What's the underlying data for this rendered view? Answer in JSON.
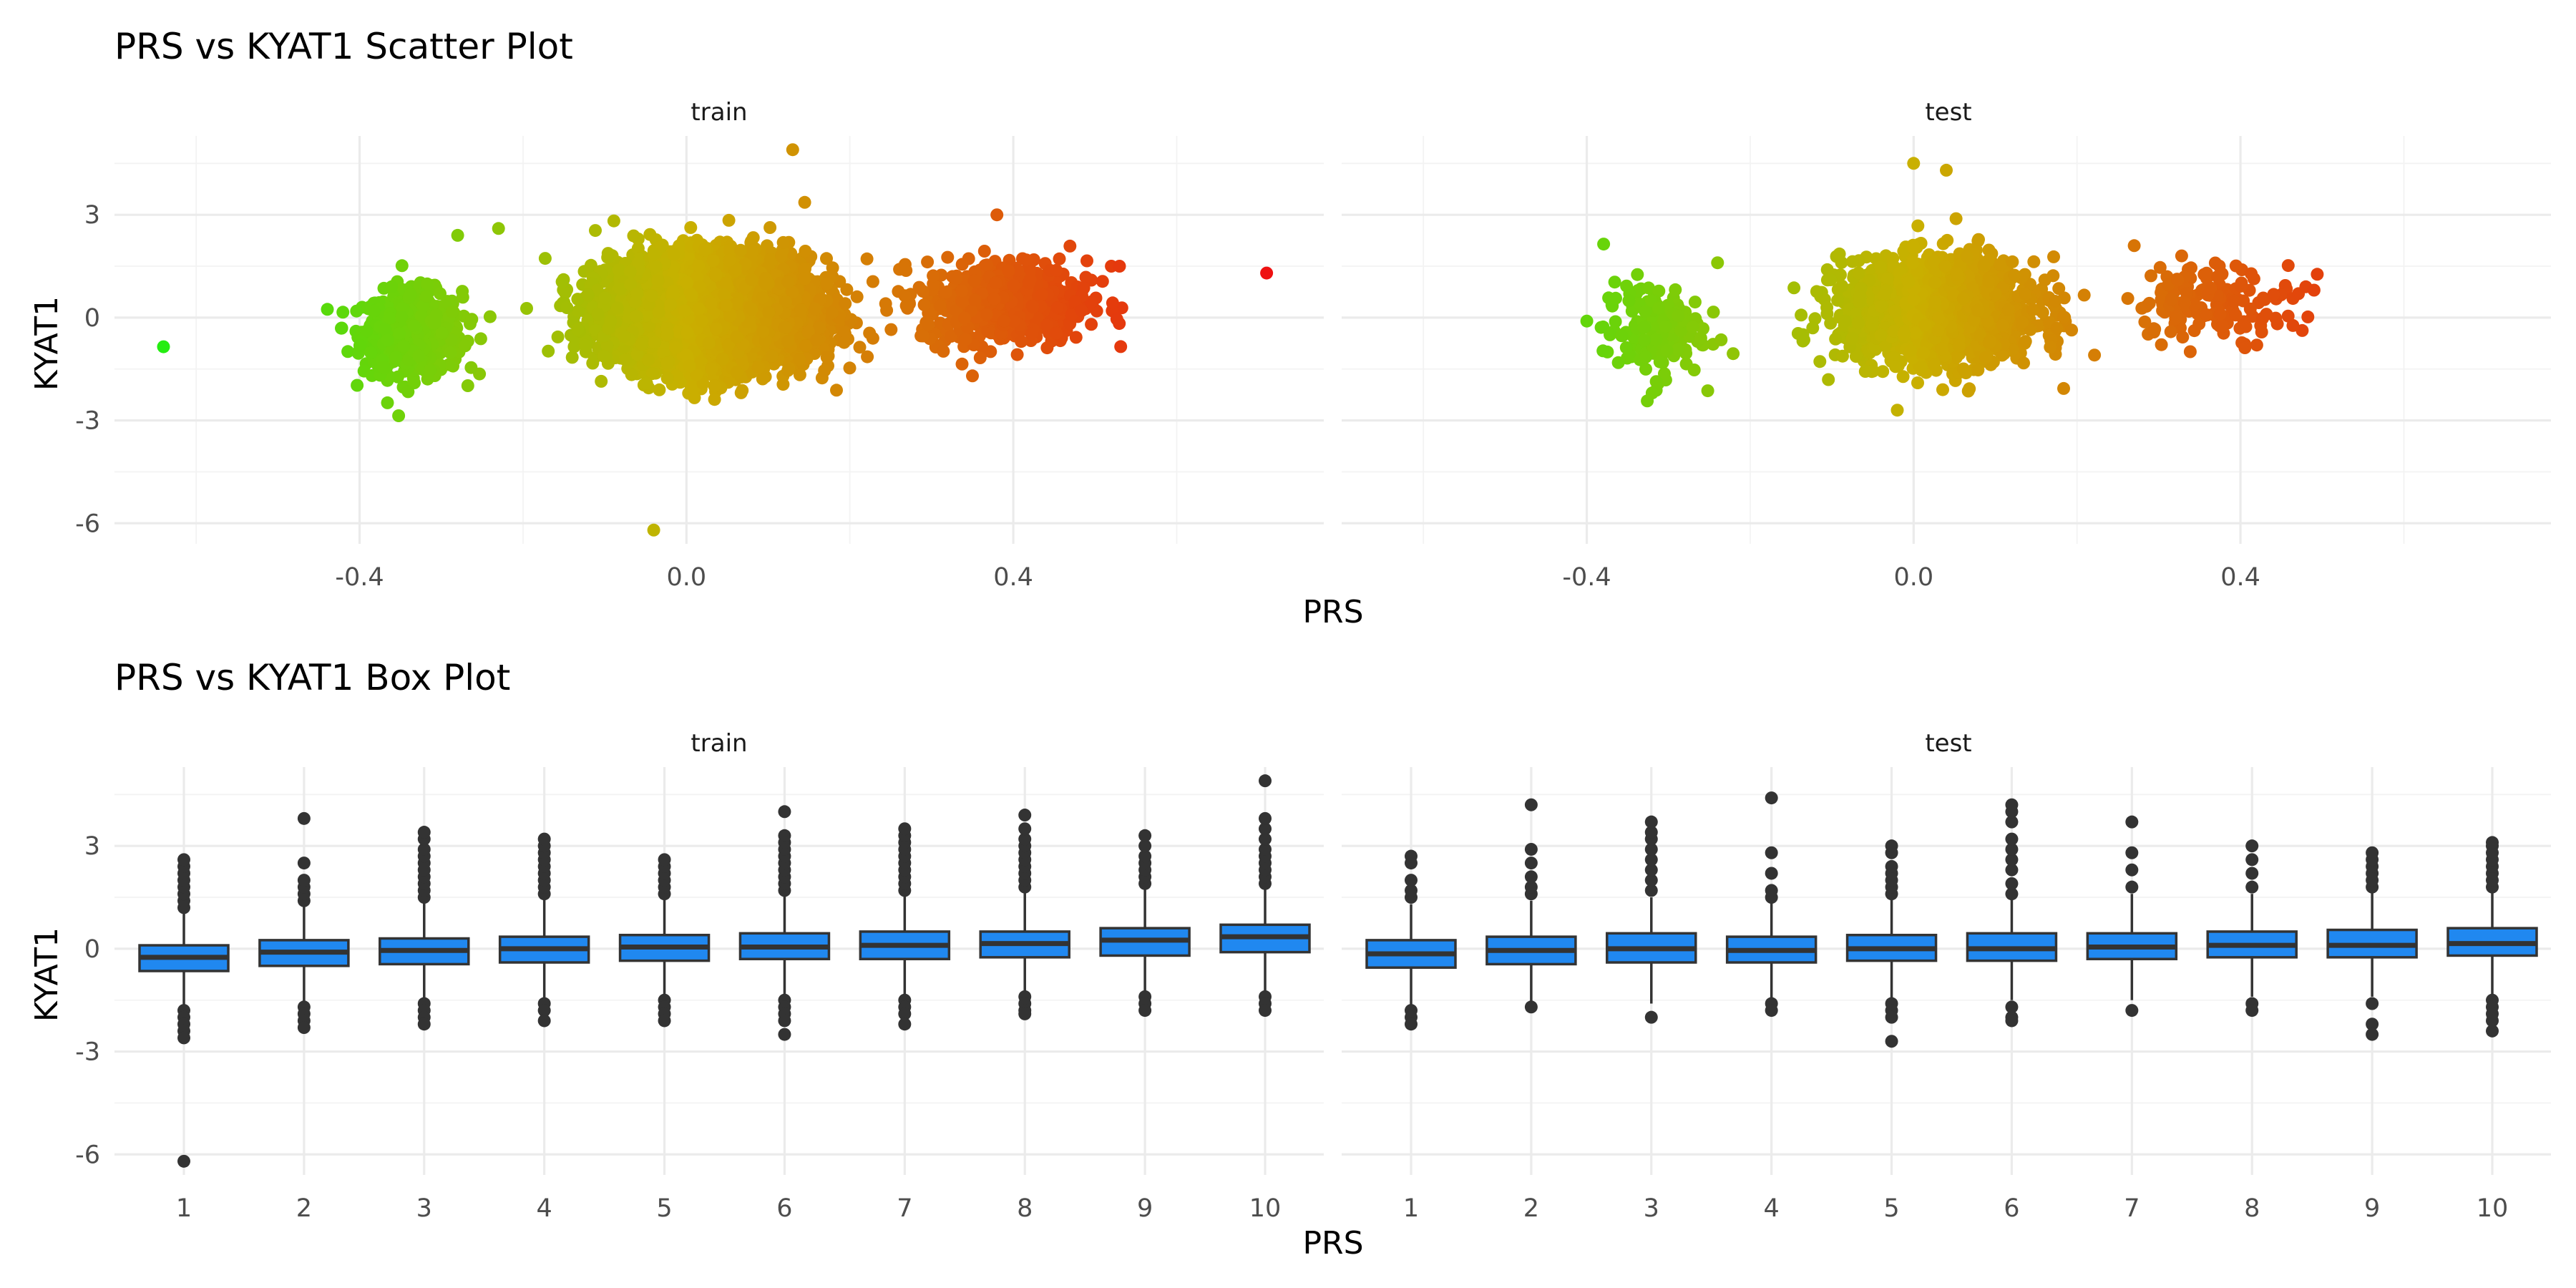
{
  "chart_data": [
    {
      "type": "scatter",
      "title": "PRS vs KYAT1 Scatter Plot",
      "xlabel": "PRS",
      "ylabel": "KYAT1",
      "x_ticks": [
        -0.4,
        0.0,
        0.4
      ],
      "x_tick_labels": [
        "-0.4",
        "0.0",
        "0.4"
      ],
      "y_ticks": [
        3,
        0,
        -3,
        -6
      ],
      "y_tick_labels": [
        "3",
        "0",
        "-3",
        "-6"
      ],
      "xlim": [
        -0.7,
        0.78
      ],
      "ylim": [
        -6.6,
        5.3
      ],
      "grid": true,
      "color_scale": {
        "low": "#22ee11",
        "mid": "#c9b000",
        "high": "#ee1111",
        "domain": [
          -0.65,
          0.0,
          0.71
        ]
      },
      "panels": [
        {
          "facet": "train",
          "clusters": [
            {
              "x_mean": -0.335,
              "x_sd": 0.03,
              "y_mean": -0.45,
              "y_sd": 0.6,
              "n": 700
            },
            {
              "x_mean": 0.03,
              "x_sd": 0.06,
              "y_mean": 0.15,
              "y_sd": 0.75,
              "n": 6000
            },
            {
              "x_mean": 0.39,
              "x_sd": 0.05,
              "y_mean": 0.45,
              "y_sd": 0.6,
              "n": 600
            }
          ],
          "points": [
            {
              "x": -0.64,
              "y": -0.85
            },
            {
              "x": 0.71,
              "y": 1.3
            },
            {
              "x": -0.04,
              "y": -6.2
            },
            {
              "x": 0.13,
              "y": 4.9
            },
            {
              "x": -0.28,
              "y": 2.4
            },
            {
              "x": -0.23,
              "y": 2.6
            },
            {
              "x": 0.38,
              "y": 3.0
            },
            {
              "x": 0.52,
              "y": 1.5
            },
            {
              "x": 0.53,
              "y": 1.5
            },
            {
              "x": 0.35,
              "y": -1.7
            }
          ]
        },
        {
          "facet": "test",
          "clusters": [
            {
              "x_mean": -0.32,
              "x_sd": 0.03,
              "y_mean": -0.35,
              "y_sd": 0.7,
              "n": 150
            },
            {
              "x_mean": 0.03,
              "x_sd": 0.06,
              "y_mean": 0.2,
              "y_sd": 0.75,
              "n": 1500
            },
            {
              "x_mean": 0.37,
              "x_sd": 0.05,
              "y_mean": 0.5,
              "y_sd": 0.55,
              "n": 150
            }
          ],
          "points": [
            {
              "x": -0.4,
              "y": -0.1
            },
            {
              "x": -0.32,
              "y": -2.2
            },
            {
              "x": -0.24,
              "y": 1.6
            },
            {
              "x": 0.0,
              "y": 4.5
            },
            {
              "x": 0.04,
              "y": 4.3
            },
            {
              "x": -0.02,
              "y": -2.7
            },
            {
              "x": 0.48,
              "y": 0.9
            },
            {
              "x": 0.49,
              "y": 0.8
            },
            {
              "x": 0.42,
              "y": -0.8
            },
            {
              "x": 0.27,
              "y": 2.1
            }
          ]
        }
      ]
    },
    {
      "type": "box",
      "title": "PRS vs KYAT1 Box Plot",
      "xlabel": "PRS",
      "ylabel": "KYAT1",
      "categories": [
        "1",
        "2",
        "3",
        "4",
        "5",
        "6",
        "7",
        "8",
        "9",
        "10"
      ],
      "y_ticks": [
        3,
        0,
        -3,
        -6
      ],
      "y_tick_labels": [
        "3",
        "0",
        "-3",
        "-6"
      ],
      "ylim": [
        -6.6,
        5.3
      ],
      "grid": true,
      "box_fill": "#2088f0",
      "box_stroke": "#333333",
      "panels": [
        {
          "facet": "train",
          "boxes": [
            {
              "q1": -0.65,
              "median": -0.25,
              "q3": 0.1,
              "whisker_low": -1.7,
              "whisker_high": 1.1,
              "outliers_high": [
                1.2,
                1.4,
                1.6,
                1.8,
                2.0,
                2.2,
                2.4,
                2.6
              ],
              "outliers_low": [
                -1.8,
                -2.0,
                -2.2,
                -2.4,
                -2.6,
                -6.2
              ]
            },
            {
              "q1": -0.5,
              "median": -0.1,
              "q3": 0.25,
              "whisker_low": -1.6,
              "whisker_high": 1.3,
              "outliers_high": [
                1.4,
                1.6,
                1.8,
                2.0,
                2.5,
                3.8
              ],
              "outliers_low": [
                -1.7,
                -1.9,
                -2.1,
                -2.3
              ]
            },
            {
              "q1": -0.45,
              "median": -0.05,
              "q3": 0.3,
              "whisker_low": -1.5,
              "whisker_high": 1.4,
              "outliers_high": [
                1.5,
                1.7,
                1.9,
                2.1,
                2.3,
                2.5,
                2.7,
                2.9,
                3.2,
                3.4
              ],
              "outliers_low": [
                -1.6,
                -1.8,
                -2.0,
                -2.2
              ]
            },
            {
              "q1": -0.4,
              "median": 0.0,
              "q3": 0.35,
              "whisker_low": -1.5,
              "whisker_high": 1.5,
              "outliers_high": [
                1.6,
                1.8,
                2.0,
                2.2,
                2.4,
                2.6,
                2.8,
                3.0,
                3.2
              ],
              "outliers_low": [
                -1.6,
                -1.8,
                -2.1
              ]
            },
            {
              "q1": -0.35,
              "median": 0.05,
              "q3": 0.4,
              "whisker_low": -1.4,
              "whisker_high": 1.5,
              "outliers_high": [
                1.6,
                1.8,
                2.0,
                2.2,
                2.4,
                2.6
              ],
              "outliers_low": [
                -1.5,
                -1.7,
                -1.9,
                -2.1
              ]
            },
            {
              "q1": -0.3,
              "median": 0.05,
              "q3": 0.45,
              "whisker_low": -1.4,
              "whisker_high": 1.6,
              "outliers_high": [
                1.7,
                1.9,
                2.1,
                2.3,
                2.5,
                2.7,
                2.9,
                3.1,
                3.3,
                4.0
              ],
              "outliers_low": [
                -1.5,
                -1.7,
                -1.9,
                -2.1,
                -2.5
              ]
            },
            {
              "q1": -0.3,
              "median": 0.1,
              "q3": 0.5,
              "whisker_low": -1.4,
              "whisker_high": 1.6,
              "outliers_high": [
                1.7,
                1.9,
                2.1,
                2.3,
                2.5,
                2.7,
                2.9,
                3.1,
                3.3,
                3.5
              ],
              "outliers_low": [
                -1.5,
                -1.7,
                -1.9,
                -2.2
              ]
            },
            {
              "q1": -0.25,
              "median": 0.15,
              "q3": 0.5,
              "whisker_low": -1.3,
              "whisker_high": 1.7,
              "outliers_high": [
                1.8,
                2.0,
                2.2,
                2.4,
                2.6,
                2.8,
                3.0,
                3.2,
                3.5,
                3.9
              ],
              "outliers_low": [
                -1.4,
                -1.6,
                -1.8,
                -1.9
              ]
            },
            {
              "q1": -0.2,
              "median": 0.25,
              "q3": 0.6,
              "whisker_low": -1.3,
              "whisker_high": 1.8,
              "outliers_high": [
                1.9,
                2.1,
                2.3,
                2.5,
                2.7,
                3.0,
                3.3
              ],
              "outliers_low": [
                -1.4,
                -1.6,
                -1.8
              ]
            },
            {
              "q1": -0.1,
              "median": 0.35,
              "q3": 0.7,
              "whisker_low": -1.3,
              "whisker_high": 1.8,
              "outliers_high": [
                1.9,
                2.1,
                2.3,
                2.5,
                2.7,
                2.9,
                3.2,
                3.5,
                3.8,
                4.9
              ],
              "outliers_low": [
                -1.4,
                -1.6,
                -1.8
              ]
            }
          ]
        },
        {
          "facet": "test",
          "boxes": [
            {
              "q1": -0.55,
              "median": -0.15,
              "q3": 0.25,
              "whisker_low": -1.7,
              "whisker_high": 1.3,
              "outliers_high": [
                1.5,
                1.7,
                2.0,
                2.5,
                2.7
              ],
              "outliers_low": [
                -1.8,
                -2.0,
                -2.2
              ]
            },
            {
              "q1": -0.45,
              "median": -0.05,
              "q3": 0.35,
              "whisker_low": -1.6,
              "whisker_high": 1.4,
              "outliers_high": [
                1.6,
                1.8,
                2.1,
                2.5,
                2.9,
                4.2
              ],
              "outliers_low": [
                -1.7
              ]
            },
            {
              "q1": -0.4,
              "median": 0.0,
              "q3": 0.45,
              "whisker_low": -1.6,
              "whisker_high": 1.5,
              "outliers_high": [
                1.7,
                2.0,
                2.3,
                2.6,
                2.9,
                3.2,
                3.4,
                3.7
              ],
              "outliers_low": [
                -2.0
              ]
            },
            {
              "q1": -0.4,
              "median": -0.05,
              "q3": 0.35,
              "whisker_low": -1.5,
              "whisker_high": 1.4,
              "outliers_high": [
                1.5,
                1.7,
                2.2,
                2.8,
                4.4
              ],
              "outliers_low": [
                -1.6,
                -1.8
              ]
            },
            {
              "q1": -0.35,
              "median": 0.0,
              "q3": 0.4,
              "whisker_low": -1.5,
              "whisker_high": 1.5,
              "outliers_high": [
                1.6,
                1.8,
                2.0,
                2.2,
                2.4,
                2.8,
                3.0
              ],
              "outliers_low": [
                -1.6,
                -1.8,
                -2.0,
                -2.7
              ]
            },
            {
              "q1": -0.35,
              "median": 0.0,
              "q3": 0.45,
              "whisker_low": -1.5,
              "whisker_high": 1.5,
              "outliers_high": [
                1.6,
                1.9,
                2.3,
                2.6,
                2.9,
                3.2,
                3.7,
                4.0,
                4.2
              ],
              "outliers_low": [
                -1.7,
                -2.0,
                -2.1
              ]
            },
            {
              "q1": -0.3,
              "median": 0.05,
              "q3": 0.45,
              "whisker_low": -1.5,
              "whisker_high": 1.6,
              "outliers_high": [
                1.8,
                2.3,
                2.8,
                3.7
              ],
              "outliers_low": [
                -1.8
              ]
            },
            {
              "q1": -0.25,
              "median": 0.1,
              "q3": 0.5,
              "whisker_low": -1.4,
              "whisker_high": 1.6,
              "outliers_high": [
                1.8,
                2.2,
                2.6,
                3.0
              ],
              "outliers_low": [
                -1.6,
                -1.8
              ]
            },
            {
              "q1": -0.25,
              "median": 0.1,
              "q3": 0.55,
              "whisker_low": -1.4,
              "whisker_high": 1.7,
              "outliers_high": [
                1.8,
                2.0,
                2.2,
                2.4,
                2.6,
                2.8
              ],
              "outliers_low": [
                -1.6,
                -2.2,
                -2.5
              ]
            },
            {
              "q1": -0.2,
              "median": 0.15,
              "q3": 0.6,
              "whisker_low": -1.4,
              "whisker_high": 1.7,
              "outliers_high": [
                1.8,
                2.0,
                2.2,
                2.4,
                2.6,
                2.8,
                3.0,
                3.1
              ],
              "outliers_low": [
                -1.5,
                -1.7,
                -1.9,
                -2.1,
                -2.4
              ]
            }
          ]
        }
      ]
    }
  ]
}
